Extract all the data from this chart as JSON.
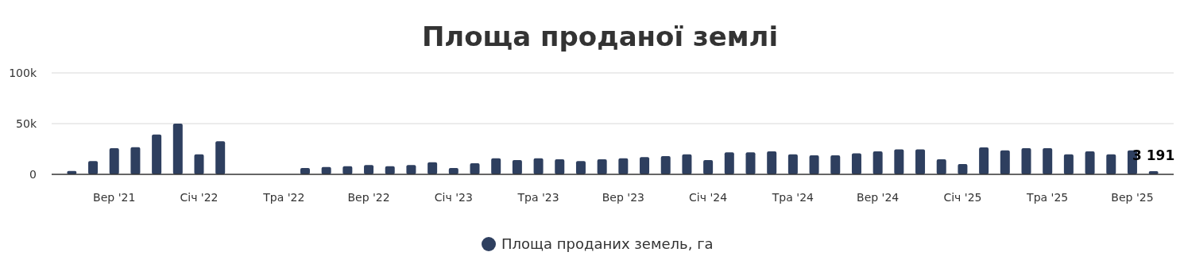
{
  "chart_data": {
    "type": "bar",
    "title": "Площа проданої землі",
    "categories": [
      null,
      null,
      "Вер '21",
      null,
      null,
      null,
      "Січ '22",
      null,
      null,
      null,
      "Тра '22",
      null,
      null,
      null,
      "Вер '22",
      null,
      null,
      null,
      "Січ '23",
      null,
      null,
      null,
      "Тра '23",
      null,
      null,
      null,
      "Вер '23",
      null,
      null,
      null,
      "Січ '24",
      null,
      null,
      null,
      "Тра '24",
      null,
      null,
      null,
      "Вер '24",
      null,
      null,
      null,
      "Січ '25",
      null,
      null,
      null,
      "Тра '25",
      null,
      null,
      null,
      "Вер '25",
      null
    ],
    "series": [
      {
        "name": "Площа проданих земель, га",
        "color": "#2e3f5f",
        "values": [
          3400,
          13000,
          25800,
          26800,
          39300,
          50000,
          19800,
          32600,
          null,
          null,
          null,
          6300,
          7300,
          8100,
          9100,
          8100,
          9100,
          12000,
          6300,
          10900,
          15900,
          14100,
          15900,
          14800,
          13000,
          14800,
          15900,
          16900,
          18000,
          19800,
          14100,
          21600,
          21600,
          22700,
          19800,
          18800,
          18800,
          20800,
          22700,
          24700,
          24700,
          14800,
          10200,
          26600,
          23700,
          25800,
          25800,
          19800,
          22700,
          19800,
          23700,
          3191
        ],
        "value_labels": [
          null,
          null,
          null,
          null,
          null,
          null,
          null,
          null,
          null,
          null,
          null,
          null,
          null,
          null,
          null,
          null,
          null,
          null,
          null,
          null,
          null,
          null,
          null,
          null,
          null,
          null,
          null,
          null,
          null,
          null,
          null,
          null,
          null,
          null,
          null,
          null,
          null,
          null,
          null,
          null,
          null,
          null,
          null,
          null,
          null,
          null,
          null,
          null,
          null,
          null,
          null,
          "3 191"
        ]
      }
    ],
    "ylim": [
      0,
      100000
    ],
    "yticks": [
      {
        "value": 0,
        "label": "0"
      },
      {
        "value": 50000,
        "label": "50k"
      },
      {
        "value": 100000,
        "label": "100k"
      }
    ],
    "grid": "y",
    "legend": "bottom",
    "marker": "circle"
  }
}
